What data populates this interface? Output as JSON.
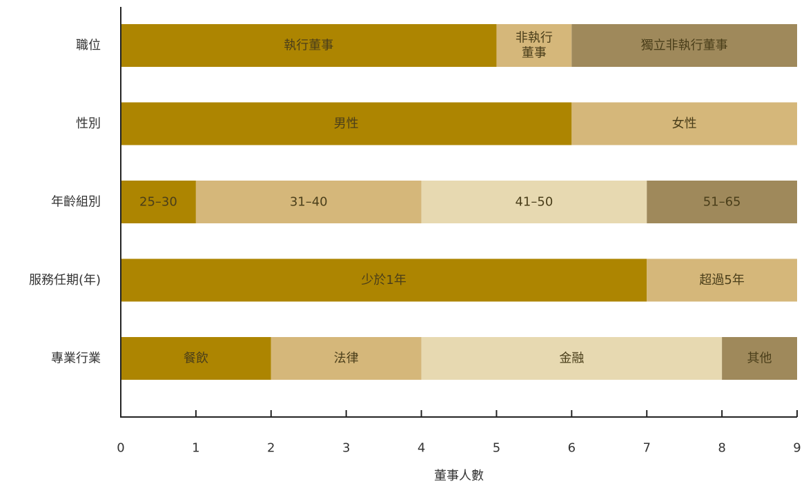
{
  "chart_data": {
    "type": "bar",
    "orientation": "horizontal",
    "stacked": true,
    "xlabel": "董事人數",
    "xlim": [
      0,
      9
    ],
    "xticks": [
      0,
      1,
      2,
      3,
      4,
      5,
      6,
      7,
      8,
      9
    ],
    "grid": false,
    "colors": {
      "dark_gold": "#ad8501",
      "light_tan": "#d5b77a",
      "pale_cream": "#e7d9b1",
      "olive_brown": "#9f895b"
    },
    "categories": [
      {
        "label": "職位",
        "segments": [
          {
            "name": "執行董事",
            "value": 5,
            "color": "dark_gold"
          },
          {
            "name": "非執行董事",
            "lines": [
              "非執行",
              "董事"
            ],
            "value": 1,
            "color": "light_tan"
          },
          {
            "name": "獨立非執行董事",
            "value": 3,
            "color": "olive_brown"
          }
        ]
      },
      {
        "label": "性別",
        "segments": [
          {
            "name": "男性",
            "value": 6,
            "color": "dark_gold"
          },
          {
            "name": "女性",
            "value": 3,
            "color": "light_tan"
          }
        ]
      },
      {
        "label": "年齡組別",
        "segments": [
          {
            "name": "25–30",
            "value": 1,
            "color": "dark_gold"
          },
          {
            "name": "31–40",
            "value": 3,
            "color": "light_tan"
          },
          {
            "name": "41–50",
            "value": 3,
            "color": "pale_cream"
          },
          {
            "name": "51–65",
            "value": 2,
            "color": "olive_brown"
          }
        ]
      },
      {
        "label": "服務任期(年)",
        "segments": [
          {
            "name": "少於1年",
            "value": 7,
            "color": "dark_gold"
          },
          {
            "name": "超過5年",
            "value": 2,
            "color": "light_tan"
          }
        ]
      },
      {
        "label": "專業行業",
        "segments": [
          {
            "name": "餐飲",
            "value": 2,
            "color": "dark_gold"
          },
          {
            "name": "法律",
            "value": 2,
            "color": "light_tan"
          },
          {
            "name": "金融",
            "value": 4,
            "color": "pale_cream"
          },
          {
            "name": "其他",
            "value": 1,
            "color": "olive_brown"
          }
        ]
      }
    ]
  }
}
